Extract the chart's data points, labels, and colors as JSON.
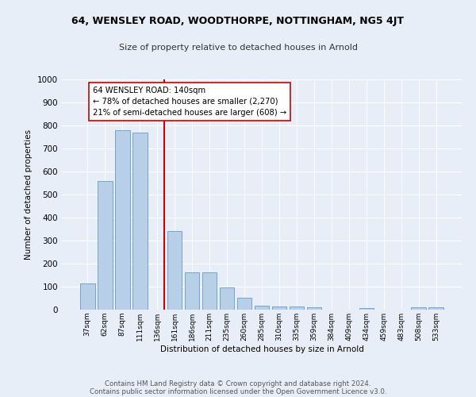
{
  "title1": "64, WENSLEY ROAD, WOODTHORPE, NOTTINGHAM, NG5 4JT",
  "title2": "Size of property relative to detached houses in Arnold",
  "xlabel": "Distribution of detached houses by size in Arnold",
  "ylabel": "Number of detached properties",
  "bar_labels": [
    "37sqm",
    "62sqm",
    "87sqm",
    "111sqm",
    "136sqm",
    "161sqm",
    "186sqm",
    "211sqm",
    "235sqm",
    "260sqm",
    "285sqm",
    "310sqm",
    "335sqm",
    "359sqm",
    "384sqm",
    "409sqm",
    "434sqm",
    "459sqm",
    "483sqm",
    "508sqm",
    "533sqm"
  ],
  "bar_values": [
    113,
    560,
    780,
    770,
    0,
    343,
    163,
    163,
    98,
    52,
    18,
    15,
    13,
    10,
    0,
    0,
    8,
    0,
    0,
    10,
    10
  ],
  "bar_color": "#b8cfe8",
  "bar_edge_color": "#6699cc",
  "vline_color": "#cc0000",
  "annotation_text": "64 WENSLEY ROAD: 140sqm\n← 78% of detached houses are smaller (2,270)\n21% of semi-detached houses are larger (608) →",
  "annotation_box_color": "#ffffff",
  "annotation_box_edge": "#cc0000",
  "ylim": [
    0,
    1000
  ],
  "yticks": [
    0,
    100,
    200,
    300,
    400,
    500,
    600,
    700,
    800,
    900,
    1000
  ],
  "footer1": "Contains HM Land Registry data © Crown copyright and database right 2024.",
  "footer2": "Contains public sector information licensed under the Open Government Licence v3.0.",
  "bg_color": "#e8eef8",
  "title1_fontsize": 9,
  "title2_fontsize": 8
}
